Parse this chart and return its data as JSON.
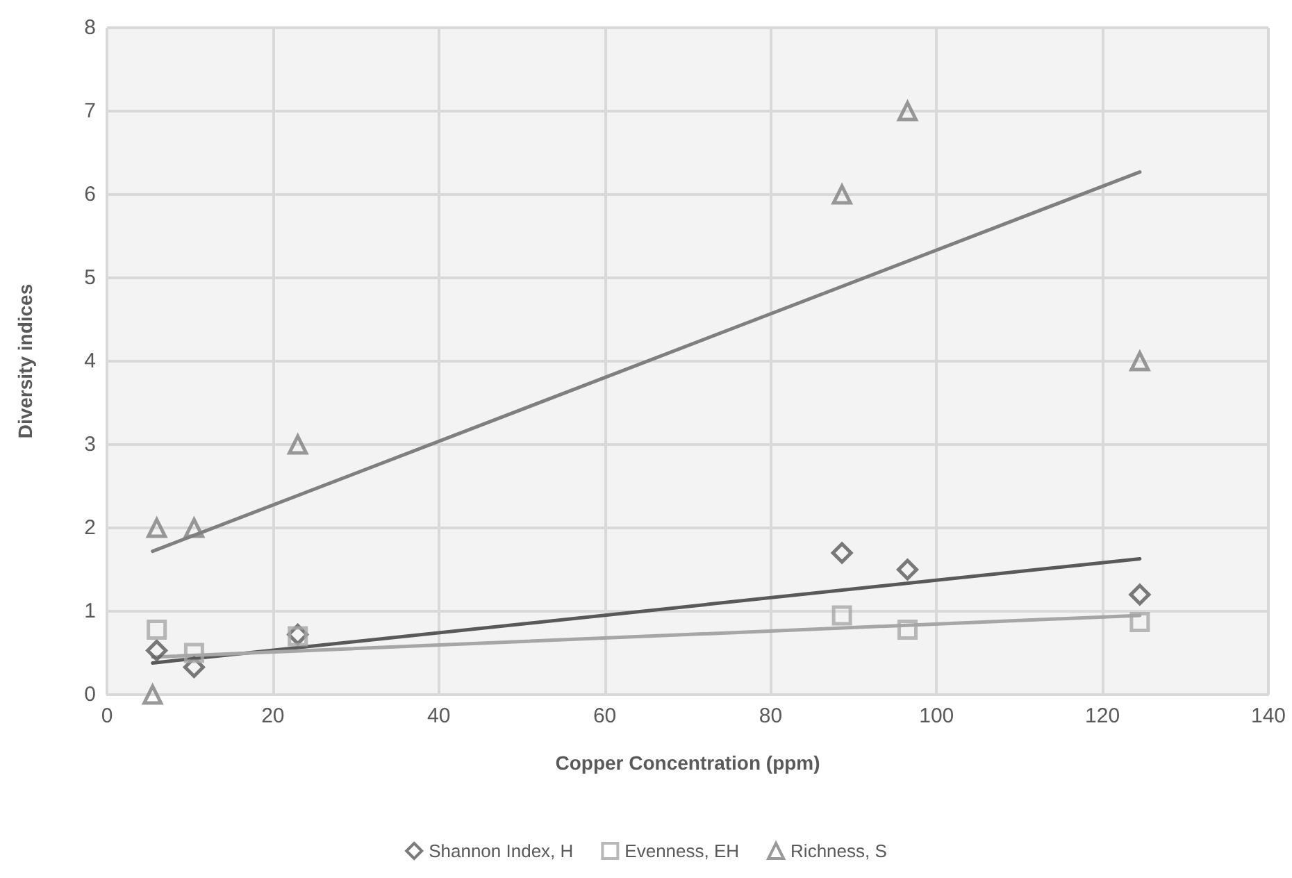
{
  "chart_data": {
    "type": "scatter",
    "xlabel": "Copper Concentration (ppm)",
    "ylabel": "Diversity indices",
    "xlim": [
      0,
      140
    ],
    "xticks": [
      0,
      20,
      40,
      60,
      80,
      100,
      120,
      140
    ],
    "ylim": [
      0,
      8
    ],
    "yticks": [
      0,
      1,
      2,
      3,
      4,
      5,
      6,
      7,
      8
    ],
    "grid": true,
    "legend": "bottom",
    "series": [
      {
        "name": "Shannon Index, H",
        "color": "#595959",
        "marker": "diamond",
        "x": [
          6,
          10.5,
          23,
          88.6,
          96.5,
          124.5
        ],
        "values": [
          0.53,
          0.33,
          0.72,
          1.7,
          1.5,
          1.2
        ]
      },
      {
        "name": "Evenness, EH",
        "color": "#a6a6a6",
        "marker": "square",
        "x": [
          6,
          10.5,
          23,
          88.6,
          96.5,
          124.5
        ],
        "values": [
          0.78,
          0.5,
          0.7,
          0.95,
          0.78,
          0.87
        ]
      },
      {
        "name": "Richness, S",
        "color": "#7f7f7f",
        "marker": "triangle",
        "x": [
          5.5,
          6,
          10.5,
          23,
          88.6,
          96.5,
          124.5
        ],
        "values": [
          0,
          2,
          2,
          3,
          6,
          7,
          4
        ]
      },
      {
        "type": "line",
        "color": "#595959",
        "x": [
          5.5,
          124.5
        ],
        "values": [
          0.38,
          1.63
        ]
      },
      {
        "type": "line",
        "color": "#a6a6a6",
        "x": [
          5.5,
          124.5
        ],
        "values": [
          0.45,
          0.95
        ]
      },
      {
        "type": "line",
        "color": "#7f7f7f",
        "x": [
          5.5,
          124.5
        ],
        "values": [
          1.72,
          6.27
        ]
      }
    ]
  }
}
